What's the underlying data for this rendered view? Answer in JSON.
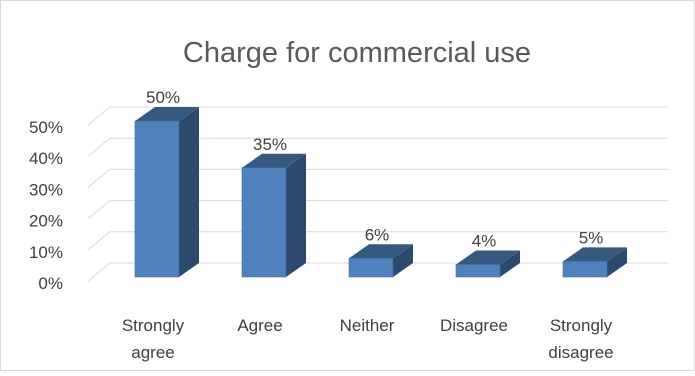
{
  "chart_data": {
    "type": "bar",
    "title": "Charge for commercial use",
    "categories": [
      "Strongly agree",
      "Agree",
      "Neither",
      "Disagree",
      "Strongly disagree"
    ],
    "category_lines": [
      [
        "Strongly",
        "agree"
      ],
      [
        "Agree"
      ],
      [
        "Neither"
      ],
      [
        "Disagree"
      ],
      [
        "Strongly",
        "disagree"
      ]
    ],
    "values": [
      50,
      35,
      6,
      4,
      5
    ],
    "value_labels": [
      "50%",
      "35%",
      "6%",
      "4%",
      "5%"
    ],
    "ytick_labels": [
      "0%",
      "10%",
      "20%",
      "30%",
      "40%",
      "50%"
    ],
    "ylim": [
      0,
      50
    ],
    "ytick_step": 10,
    "xlabel": "",
    "ylabel": "",
    "grid": true,
    "legend": "none",
    "style": "3d-column",
    "colors": {
      "front": "#4f81bd",
      "side": "#2c4a6e",
      "top": "#36597f",
      "grid": "#d9d9d9",
      "text": "#404040"
    }
  }
}
